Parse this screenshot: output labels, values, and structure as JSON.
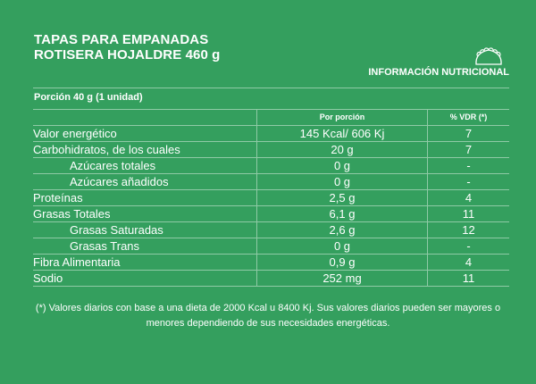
{
  "title": [
    "TAPAS PARA EMPANADAS",
    "ROTISERA HOJALDRE 460 g"
  ],
  "icon": "empanada-icon",
  "info_label": "INFORMACIÓN NUTRICIONAL",
  "portion": "Porción 40 g (1 unidad)",
  "headers": {
    "per_portion": "Por porción",
    "vdr": "% VDR (*)"
  },
  "rows": [
    {
      "name": "Valor energético",
      "value": "145 Kcal/ 606 Kj",
      "vdr": "7",
      "sub": false
    },
    {
      "name": "Carbohidratos, de los cuales",
      "value": "20 g",
      "vdr": "7",
      "sub": false
    },
    {
      "name": "Azúcares totales",
      "value": "0 g",
      "vdr": "-",
      "sub": true
    },
    {
      "name": "Azúcares añadidos",
      "value": "0 g",
      "vdr": "-",
      "sub": true
    },
    {
      "name": "Proteínas",
      "value": "2,5 g",
      "vdr": "4",
      "sub": false
    },
    {
      "name": "Grasas Totales",
      "value": "6,1 g",
      "vdr": "11",
      "sub": false
    },
    {
      "name": "Grasas Saturadas",
      "value": "2,6 g",
      "vdr": "12",
      "sub": true
    },
    {
      "name": "Grasas Trans",
      "value": "0 g",
      "vdr": "-",
      "sub": true
    },
    {
      "name": "Fibra Alimentaria",
      "value": "0,9 g",
      "vdr": "4",
      "sub": false
    },
    {
      "name": "Sodio",
      "value": "252 mg",
      "vdr": "11",
      "sub": false
    }
  ],
  "footnote": "(*) Valores diarios con base a una dieta de 2000 Kcal u 8400 Kj. Sus valores diarios pueden ser mayores o menores dependiendo de sus necesidades energéticas."
}
